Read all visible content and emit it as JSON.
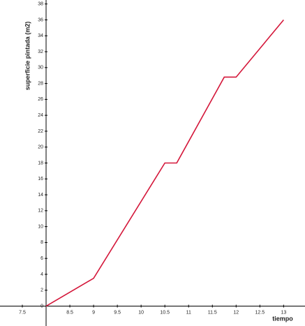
{
  "chart_data": {
    "type": "line",
    "y_label": "superficie pintada (m2)",
    "x_label": "tiempo",
    "x": [
      8,
      9,
      10.5,
      10.75,
      11.75,
      12,
      13
    ],
    "values": [
      0,
      3.5,
      18,
      18,
      28.8,
      28.8,
      36
    ],
    "color": "#d4173a",
    "xlim": [
      7.03,
      13.45
    ],
    "ylim": [
      -2.5,
      38.5
    ],
    "xticks": [
      7.5,
      8.5,
      9,
      9.5,
      10,
      10.5,
      11,
      11.5,
      12,
      12.5,
      13
    ],
    "yticks": [
      0,
      2,
      4,
      6,
      8,
      10,
      12,
      14,
      16,
      18,
      20,
      22,
      24,
      26,
      28,
      30,
      32,
      34,
      36,
      38
    ]
  }
}
